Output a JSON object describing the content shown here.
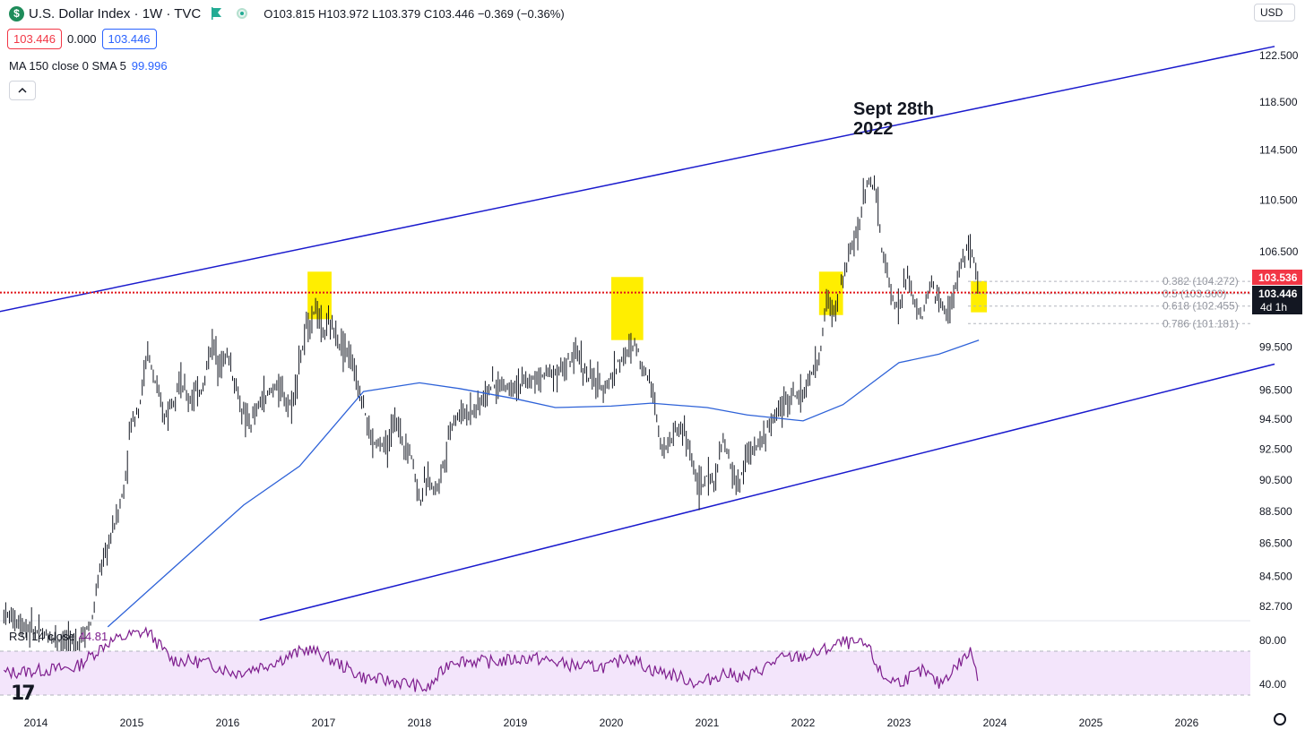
{
  "header": {
    "symbol_title": "U.S. Dollar Index · 1W · TVC",
    "ohlc": "O103.815 H103.972 L103.379 C103.446 −0.369 (−0.36%)",
    "bid": "103.446",
    "spread": "0.000",
    "ask": "103.446",
    "currency": "USD"
  },
  "indicators": {
    "ma_label": "MA 150 close 0 SMA 5",
    "ma_value": "99.996",
    "rsi_label": "RSI 14 close",
    "rsi_value": "44.81"
  },
  "annotation": {
    "line1": "Sept 28th",
    "line2": "2022"
  },
  "price_axis": {
    "ticks": [
      "122.500",
      "118.500",
      "114.500",
      "110.500",
      "106.500",
      "99.500",
      "96.500",
      "94.500",
      "92.500",
      "90.500",
      "88.500",
      "86.500",
      "84.500",
      "82.700"
    ],
    "last_price_tag": "103.536",
    "current_price_tag": "103.446",
    "countdown": "4d 1h"
  },
  "rsi_axis": {
    "ticks": [
      "80.00",
      "40.00"
    ]
  },
  "time_axis": {
    "ticks": [
      "2014",
      "2015",
      "2016",
      "2017",
      "2018",
      "2019",
      "2020",
      "2021",
      "2022",
      "2023",
      "2024",
      "2025",
      "2026"
    ]
  },
  "fib_labels": [
    "0.382 (104.272)",
    "0.5 (103.360)",
    "0.618 (102.455)",
    "0.786 (101.181)"
  ],
  "colors": {
    "candles": "#131722",
    "channel": "#1a1acd",
    "ma": "#2e62d8",
    "rsi": "#7e1e8e",
    "rsi_band": "#f3e5fb",
    "highlight": "#ffee00",
    "price_line": "#e0161b"
  },
  "chart_data": [
    {
      "type": "line",
      "title": "U.S. Dollar Index · 1W · TVC",
      "xlabel": "",
      "ylabel": "",
      "x_range": [
        "2013-08",
        "2026-12"
      ],
      "ylim": [
        81.5,
        124
      ],
      "y_scale": "log",
      "grid": false,
      "series": [
        {
          "name": "price",
          "x": [
            "2013-09",
            "2014-01",
            "2014-06",
            "2014-08",
            "2014-09",
            "2014-10",
            "2014-11",
            "2014-12",
            "2015-01",
            "2015-02",
            "2015-03",
            "2015-04",
            "2015-05",
            "2015-06",
            "2015-07",
            "2015-08",
            "2015-09",
            "2015-10",
            "2015-11",
            "2015-12",
            "2016-01",
            "2016-02",
            "2016-03",
            "2016-04",
            "2016-05",
            "2016-06",
            "2016-07",
            "2016-08",
            "2016-09",
            "2016-10",
            "2016-11",
            "2016-12",
            "2017-01",
            "2017-02",
            "2017-03",
            "2017-04",
            "2017-05",
            "2017-06",
            "2017-07",
            "2017-08",
            "2017-09",
            "2017-10",
            "2017-11",
            "2017-12",
            "2018-01",
            "2018-02",
            "2018-03",
            "2018-04",
            "2018-05",
            "2018-06",
            "2018-08",
            "2018-10",
            "2018-12",
            "2019-03",
            "2019-05",
            "2019-07",
            "2019-09",
            "2019-10",
            "2019-12",
            "2020-01",
            "2020-02",
            "2020-03",
            "2020-04",
            "2020-05",
            "2020-06",
            "2020-07",
            "2020-08",
            "2020-09",
            "2020-10",
            "2020-11",
            "2020-12",
            "2021-01",
            "2021-02",
            "2021-03",
            "2021-04",
            "2021-05",
            "2021-06",
            "2021-07",
            "2021-09",
            "2021-11",
            "2022-01",
            "2022-03",
            "2022-04",
            "2022-05",
            "2022-06",
            "2022-07",
            "2022-08",
            "2022-09",
            "2022-10",
            "2022-11",
            "2022-12",
            "2023-01",
            "2023-02",
            "2023-03",
            "2023-04",
            "2023-05",
            "2023-06",
            "2023-07",
            "2023-08",
            "2023-09",
            "2023-10",
            "2023-11"
          ],
          "y": [
            82.3,
            81.2,
            80.5,
            81.8,
            84.8,
            86.2,
            88.0,
            89.8,
            94.5,
            95.5,
            99.2,
            96.8,
            94.6,
            95.8,
            97.3,
            95.8,
            96.2,
            96.8,
            99.9,
            98.4,
            99.0,
            96.8,
            94.6,
            94.2,
            95.6,
            96.1,
            96.9,
            96.0,
            95.4,
            98.5,
            101.0,
            102.3,
            100.5,
            101.1,
            99.8,
            99.3,
            97.4,
            95.6,
            93.0,
            92.8,
            92.7,
            94.5,
            93.0,
            92.2,
            89.2,
            90.5,
            89.9,
            91.5,
            94.3,
            94.8,
            95.2,
            96.8,
            96.8,
            97.1,
            97.7,
            98.0,
            99.0,
            97.4,
            96.6,
            97.4,
            98.5,
            99.0,
            99.8,
            98.0,
            97.2,
            93.5,
            92.5,
            93.8,
            93.9,
            92.0,
            89.9,
            90.6,
            90.5,
            93.1,
            91.3,
            90.0,
            92.3,
            92.5,
            94.2,
            96.0,
            96.2,
            98.6,
            103.0,
            101.9,
            104.7,
            106.5,
            108.7,
            112.1,
            111.5,
            106.3,
            103.5,
            102.1,
            104.9,
            102.5,
            101.7,
            104.2,
            102.9,
            101.7,
            103.6,
            106.2,
            106.7,
            103.4
          ]
        },
        {
          "name": "MA 150 close 0 SMA 5",
          "x": [
            "2014-10",
            "2015-06",
            "2016-03",
            "2016-10",
            "2017-06",
            "2018-01",
            "2018-06",
            "2019-01",
            "2019-06",
            "2020-01",
            "2020-06",
            "2021-01",
            "2021-06",
            "2022-01",
            "2022-06",
            "2023-01",
            "2023-06",
            "2023-11"
          ],
          "y": [
            81.5,
            84.9,
            88.9,
            91.4,
            96.4,
            97.0,
            96.6,
            95.9,
            95.3,
            95.4,
            95.6,
            95.3,
            94.8,
            94.4,
            95.5,
            98.4,
            99.0,
            99.996
          ]
        }
      ],
      "channel_lines": [
        {
          "name": "upper",
          "x": [
            "2013-08",
            "2026-12"
          ],
          "y": [
            102.0,
            123.3
          ]
        },
        {
          "name": "lower",
          "x": [
            "2016-05",
            "2026-12"
          ],
          "y": [
            81.9,
            98.3
          ]
        }
      ],
      "horizontal_line": {
        "y": 103.446
      },
      "fibonacci": [
        {
          "level": 0.382,
          "y": 104.272
        },
        {
          "level": 0.5,
          "y": 103.36
        },
        {
          "level": 0.618,
          "y": 102.455
        },
        {
          "level": 0.786,
          "y": 101.181
        }
      ],
      "highlights": [
        {
          "x": [
            "2016-11",
            "2017-02"
          ],
          "y": [
            101.5,
            105.0
          ]
        },
        {
          "x": [
            "2020-01",
            "2020-05"
          ],
          "y": [
            100.0,
            104.6
          ]
        },
        {
          "x": [
            "2022-03",
            "2022-06"
          ],
          "y": [
            101.8,
            105.0
          ]
        },
        {
          "x": [
            "2023-10",
            "2023-12"
          ],
          "y": [
            102.0,
            104.3
          ]
        }
      ]
    },
    {
      "type": "line",
      "title": "RSI 14 close",
      "ylim": [
        30,
        90
      ],
      "guides": [
        70,
        30
      ],
      "series": [
        {
          "name": "RSI 14 close",
          "x": [
            "2013-09",
            "2014-06",
            "2014-10",
            "2015-01",
            "2015-03",
            "2015-06",
            "2015-10",
            "2016-02",
            "2016-06",
            "2016-11",
            "2017-01",
            "2017-06",
            "2017-09",
            "2017-12",
            "2018-02",
            "2018-05",
            "2018-10",
            "2019-03",
            "2019-09",
            "2020-01",
            "2020-03",
            "2020-06",
            "2020-09",
            "2020-12",
            "2021-03",
            "2021-06",
            "2021-10",
            "2022-02",
            "2022-06",
            "2022-09",
            "2022-11",
            "2023-01",
            "2023-04",
            "2023-06",
            "2023-10",
            "2023-11"
          ],
          "y": [
            50,
            55,
            78,
            85,
            88,
            62,
            60,
            50,
            58,
            72,
            66,
            46,
            43,
            40,
            35,
            62,
            60,
            64,
            56,
            56,
            66,
            53,
            48,
            40,
            50,
            46,
            63,
            66,
            78,
            75,
            46,
            42,
            52,
            40,
            70,
            45
          ]
        }
      ]
    }
  ]
}
